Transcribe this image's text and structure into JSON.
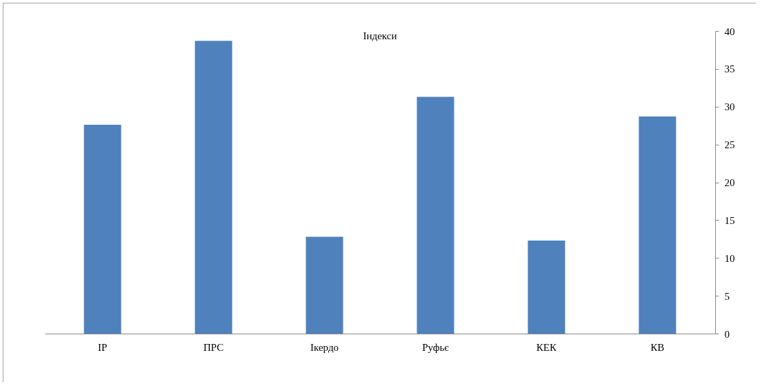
{
  "chart_data": {
    "type": "bar",
    "title": "Індекси",
    "categories": [
      "ІР",
      "ПРС",
      "Ікердо",
      "Руфьє",
      "КЕК",
      "КВ"
    ],
    "values": [
      27.6,
      38.7,
      12.8,
      31.3,
      12.3,
      28.7
    ],
    "color": "#4f81bd",
    "ylim": [
      0,
      40
    ],
    "yticks": [
      0,
      5,
      10,
      15,
      20,
      25,
      30,
      35,
      40
    ],
    "grid": false
  }
}
